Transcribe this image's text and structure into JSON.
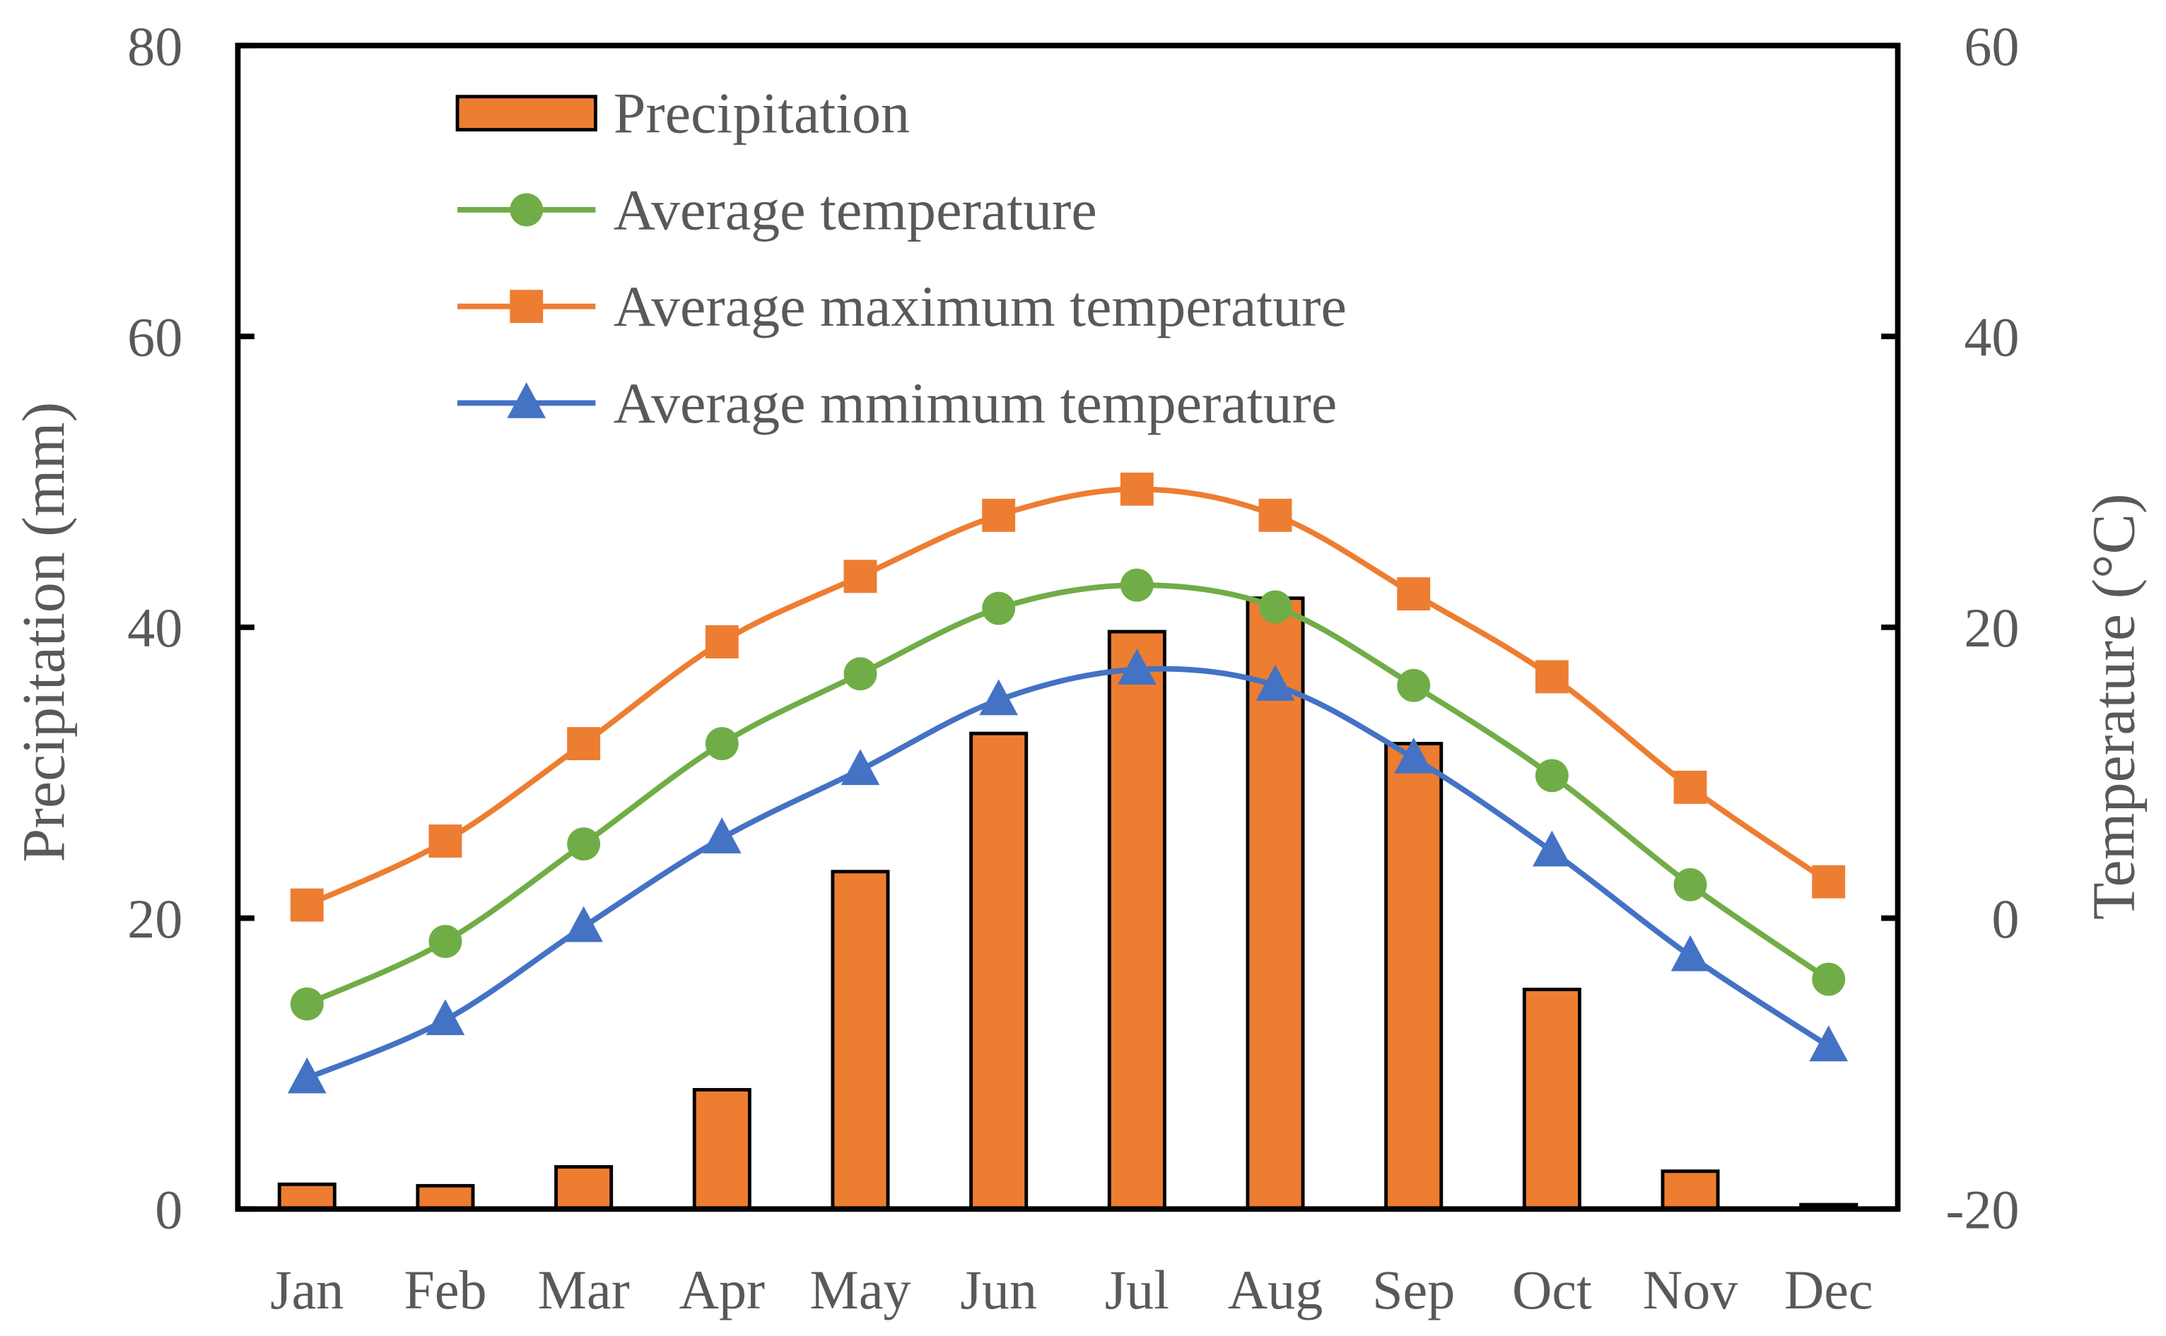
{
  "chart_data": {
    "type": "bar+line",
    "categories": [
      "Jan",
      "Feb",
      "Mar",
      "Apr",
      "May",
      "Jun",
      "Jul",
      "Aug",
      "Sep",
      "Oct",
      "Nov",
      "Dec"
    ],
    "ylabel": "Precipitation  (mm)",
    "y2label": "Temperature  (°C)",
    "ylim": [
      0,
      80
    ],
    "y2lim": [
      -20,
      60
    ],
    "yticks": [
      "0",
      "20",
      "40",
      "60",
      "80"
    ],
    "y2ticks": [
      "-20",
      "0",
      "20",
      "40",
      "60"
    ],
    "legend_position": "top-left",
    "series": [
      {
        "name": "Precipitation",
        "type": "bar",
        "axis": "left",
        "color": "#ED7D31",
        "values": [
          1.7,
          1.6,
          2.9,
          8.2,
          23.2,
          32.7,
          39.7,
          42.0,
          32.0,
          15.1,
          2.6,
          0.3
        ]
      },
      {
        "name": "Average temperature",
        "type": "line",
        "marker": "circle",
        "axis": "right",
        "color": "#70AD47",
        "values": [
          -5.9,
          -1.6,
          5.1,
          12.0,
          16.8,
          21.3,
          22.9,
          21.4,
          16.0,
          9.8,
          2.3,
          -4.2
        ]
      },
      {
        "name": "Average maximum temperature",
        "type": "line",
        "marker": "square",
        "axis": "right",
        "color": "#ED7D31",
        "values": [
          0.9,
          5.3,
          12.0,
          19.0,
          23.5,
          27.7,
          29.5,
          27.7,
          22.3,
          16.6,
          9.0,
          2.5
        ]
      },
      {
        "name": "Average mmimum temperature",
        "type": "line",
        "marker": "triangle",
        "axis": "right",
        "color": "#4472C4",
        "values": [
          -11.0,
          -7.0,
          -0.6,
          5.5,
          10.2,
          15.0,
          17.1,
          16.0,
          11.0,
          4.6,
          -2.6,
          -8.8
        ]
      }
    ]
  }
}
